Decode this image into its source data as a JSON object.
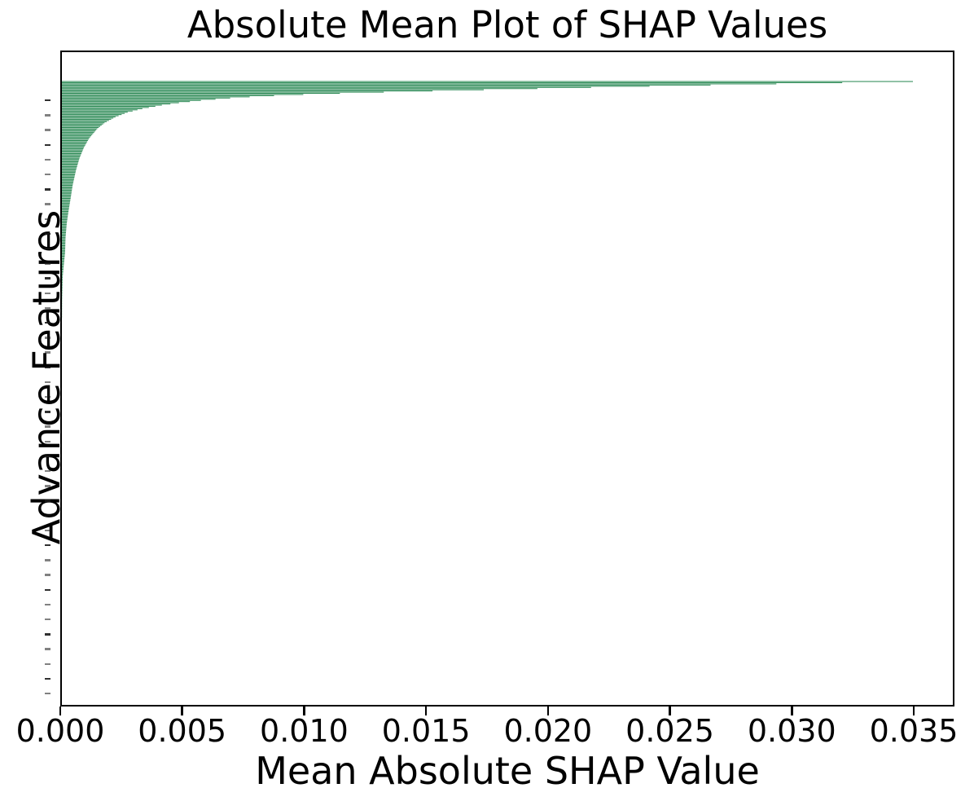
{
  "chart_data": {
    "type": "bar",
    "orientation": "horizontal",
    "title": "Absolute Mean Plot of SHAP Values",
    "xlabel": "Mean Absolute SHAP Value",
    "ylabel": "Advance Features",
    "grid": false,
    "legend": null,
    "bar_color": "#2e8b57",
    "spine_color": "#000000",
    "text_color": "#000000",
    "background_color": "#ffffff",
    "xlim": [
      0,
      0.03667
    ],
    "xticks": [
      0,
      0.005,
      0.01,
      0.015,
      0.02,
      0.025,
      0.03,
      0.035
    ],
    "xtick_labels": [
      "0.000",
      "0.005",
      "0.010",
      "0.015",
      "0.020",
      "0.025",
      "0.030",
      "0.035"
    ],
    "ytick_labels_shown": false,
    "n_features": 500,
    "max_value": 0.0349,
    "value_envelope_by_rank": [
      [
        0,
        0.0349
      ],
      [
        1,
        0.032
      ],
      [
        2,
        0.0293
      ],
      [
        3,
        0.0266
      ],
      [
        4,
        0.0241
      ],
      [
        5,
        0.0217
      ],
      [
        6,
        0.0195
      ],
      [
        7,
        0.0173
      ],
      [
        8,
        0.0152
      ],
      [
        9,
        0.0132
      ],
      [
        10,
        0.0114
      ],
      [
        11,
        0.0099
      ],
      [
        12,
        0.0087
      ],
      [
        13,
        0.0077
      ],
      [
        14,
        0.0069
      ],
      [
        16,
        0.0057
      ],
      [
        18,
        0.0048
      ],
      [
        20,
        0.0041
      ],
      [
        23,
        0.0033
      ],
      [
        26,
        0.0027
      ],
      [
        30,
        0.0022
      ],
      [
        35,
        0.00175
      ],
      [
        40,
        0.00145
      ],
      [
        48,
        0.00112
      ],
      [
        56,
        0.0009
      ],
      [
        65,
        0.00072
      ],
      [
        75,
        0.00058
      ],
      [
        88,
        0.00044
      ],
      [
        100,
        0.00035
      ],
      [
        110,
        0.00027
      ],
      [
        120,
        0.0002
      ],
      [
        132,
        0.00015
      ],
      [
        145,
        0.00013
      ],
      [
        155,
        8e-05
      ],
      [
        165,
        3.5e-05
      ],
      [
        185,
        1e-05
      ],
      [
        210,
        2e-06
      ],
      [
        260,
        0
      ],
      [
        499,
        0
      ]
    ]
  }
}
